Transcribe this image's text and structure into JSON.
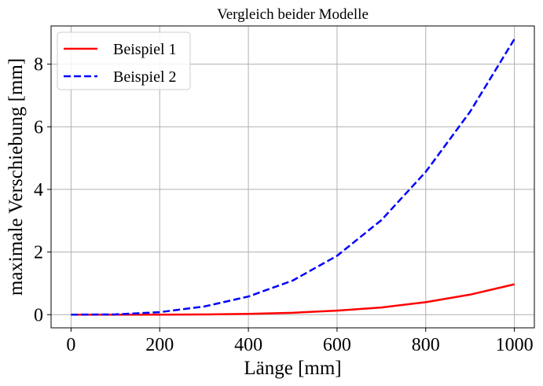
{
  "chart_data": {
    "type": "line",
    "title": "Vergleich beider Modelle",
    "xlabel": "Länge [mm]",
    "ylabel": "maximale Verschiebung [mm]",
    "xlim": [
      -45,
      1045
    ],
    "ylim": [
      -0.42,
      9.22
    ],
    "xticks": [
      0,
      200,
      400,
      600,
      800,
      1000
    ],
    "yticks": [
      0,
      2,
      4,
      6,
      8
    ],
    "grid": true,
    "legend": "top-left",
    "series": [
      {
        "name": "Beispiel 1",
        "color": "#ff0000",
        "dash": "solid",
        "x": [
          0,
          100,
          200,
          300,
          400,
          500,
          600,
          700,
          800,
          900,
          1000
        ],
        "y": [
          0,
          0.0001,
          0.0016,
          0.008,
          0.025,
          0.061,
          0.13,
          0.23,
          0.4,
          0.64,
          0.97
        ]
      },
      {
        "name": "Beispiel 2",
        "color": "#0000ff",
        "dash": "dashed",
        "x": [
          0,
          100,
          200,
          300,
          400,
          500,
          600,
          700,
          800,
          900,
          1000
        ],
        "y": [
          0,
          0.009,
          0.08,
          0.26,
          0.58,
          1.09,
          1.88,
          3.02,
          4.56,
          6.48,
          8.8
        ]
      }
    ]
  }
}
